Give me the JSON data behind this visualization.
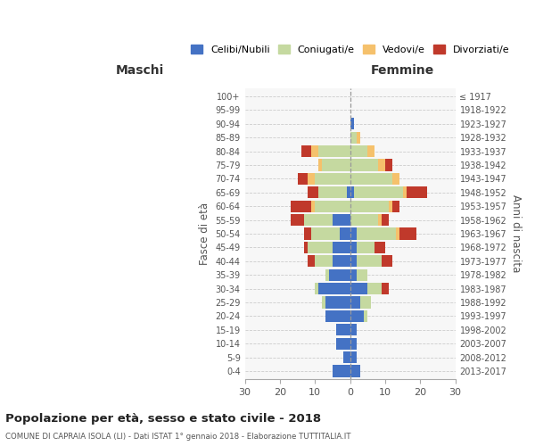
{
  "age_groups": [
    "0-4",
    "5-9",
    "10-14",
    "15-19",
    "20-24",
    "25-29",
    "30-34",
    "35-39",
    "40-44",
    "45-49",
    "50-54",
    "55-59",
    "60-64",
    "65-69",
    "70-74",
    "75-79",
    "80-84",
    "85-89",
    "90-94",
    "95-99",
    "100+"
  ],
  "birth_years": [
    "2013-2017",
    "2008-2012",
    "2003-2007",
    "1998-2002",
    "1993-1997",
    "1988-1992",
    "1983-1987",
    "1978-1982",
    "1973-1977",
    "1968-1972",
    "1963-1967",
    "1958-1962",
    "1953-1957",
    "1948-1952",
    "1943-1947",
    "1938-1942",
    "1933-1937",
    "1928-1932",
    "1923-1927",
    "1918-1922",
    "≤ 1917"
  ],
  "colors": {
    "celibe": "#4472c4",
    "coniugato": "#c5d9a0",
    "vedovo": "#f5c16c",
    "divorziato": "#c0392b"
  },
  "maschi": {
    "celibe": [
      5,
      2,
      4,
      4,
      7,
      7,
      9,
      6,
      5,
      5,
      3,
      5,
      0,
      1,
      0,
      0,
      0,
      0,
      0,
      0,
      0
    ],
    "coniugato": [
      0,
      0,
      0,
      0,
      0,
      1,
      1,
      1,
      5,
      7,
      8,
      8,
      10,
      8,
      10,
      8,
      9,
      0,
      0,
      0,
      0
    ],
    "vedovo": [
      0,
      0,
      0,
      0,
      0,
      0,
      0,
      0,
      0,
      0,
      0,
      0,
      1,
      0,
      2,
      1,
      2,
      0,
      0,
      0,
      0
    ],
    "divorziato": [
      0,
      0,
      0,
      0,
      0,
      0,
      0,
      0,
      2,
      1,
      2,
      4,
      6,
      3,
      3,
      0,
      3,
      0,
      0,
      0,
      0
    ]
  },
  "femmine": {
    "nubile": [
      3,
      2,
      2,
      2,
      4,
      3,
      5,
      2,
      2,
      2,
      2,
      0,
      0,
      1,
      0,
      0,
      0,
      0,
      1,
      0,
      0
    ],
    "coniugata": [
      0,
      0,
      0,
      0,
      1,
      3,
      4,
      3,
      7,
      5,
      11,
      8,
      11,
      14,
      12,
      8,
      5,
      2,
      0,
      0,
      0
    ],
    "vedova": [
      0,
      0,
      0,
      0,
      0,
      0,
      0,
      0,
      0,
      0,
      1,
      1,
      1,
      1,
      2,
      2,
      2,
      1,
      0,
      0,
      0
    ],
    "divorziata": [
      0,
      0,
      0,
      0,
      0,
      0,
      2,
      0,
      3,
      3,
      5,
      2,
      2,
      6,
      0,
      2,
      0,
      0,
      0,
      0,
      0
    ]
  },
  "xlim": 30,
  "title": "Popolazione per età, sesso e stato civile - 2018",
  "subtitle": "COMUNE DI CAPRAIA ISOLA (LI) - Dati ISTAT 1° gennaio 2018 - Elaborazione TUTTITALIA.IT",
  "ylabel_left": "Fasce di età",
  "ylabel_right": "Anni di nascita",
  "legend_labels": [
    "Celibi/Nubili",
    "Coniugati/e",
    "Vedovi/e",
    "Divorziati/e"
  ],
  "maschi_label": "Maschi",
  "femmine_label": "Femmine",
  "bg_color": "#f7f7f7"
}
